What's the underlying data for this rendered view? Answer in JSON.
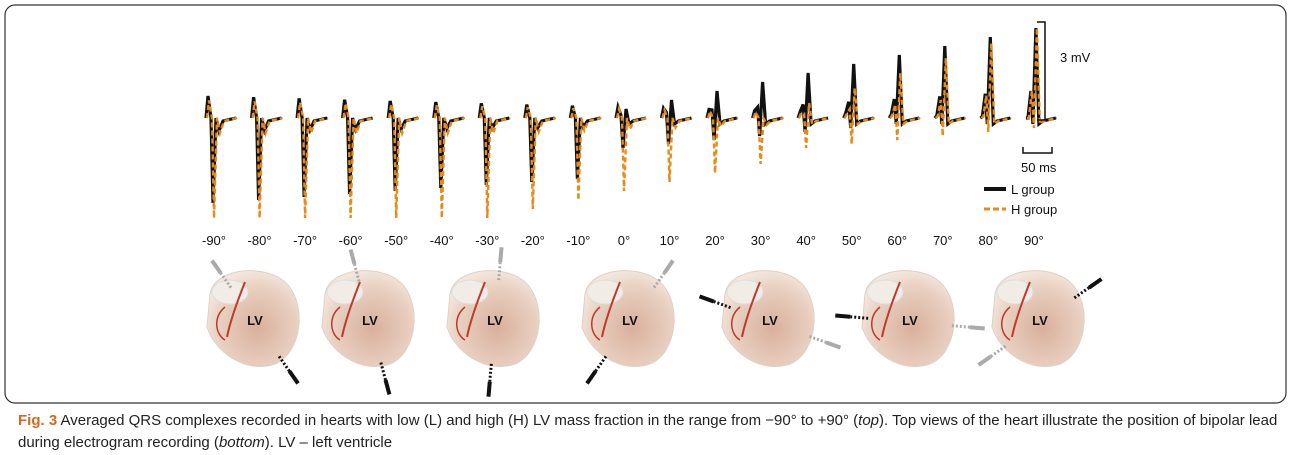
{
  "figure": {
    "angles": [
      "-90°",
      "-80°",
      "-70°",
      "-60°",
      "-50°",
      "-40°",
      "-30°",
      "-20°",
      "-10°",
      "0°",
      "10°",
      "20°",
      "30°",
      "40°",
      "50°",
      "60°",
      "70°",
      "80°",
      "90°"
    ],
    "scale_voltage": "3 mV",
    "scale_time": "50 ms",
    "legend": [
      "L group",
      "H group"
    ],
    "hearts": [
      {
        "label": "LV"
      },
      {
        "label": "LV"
      },
      {
        "label": "LV"
      },
      {
        "label": "LV"
      },
      {
        "label": "LV"
      },
      {
        "label": "LV"
      },
      {
        "label": "LV"
      }
    ]
  },
  "caption": {
    "label": "Fig. 3",
    "text_1": " Averaged QRS complexes recorded in hearts with low (L) and high (H) LV mass fraction in the range from −90° to +90° (",
    "em_1": "top",
    "text_2": "). Top views of the heart illustrate the position of bipolar lead during electrogram recording (",
    "em_2": "bottom",
    "text_3": "). LV – left ventricle"
  }
}
